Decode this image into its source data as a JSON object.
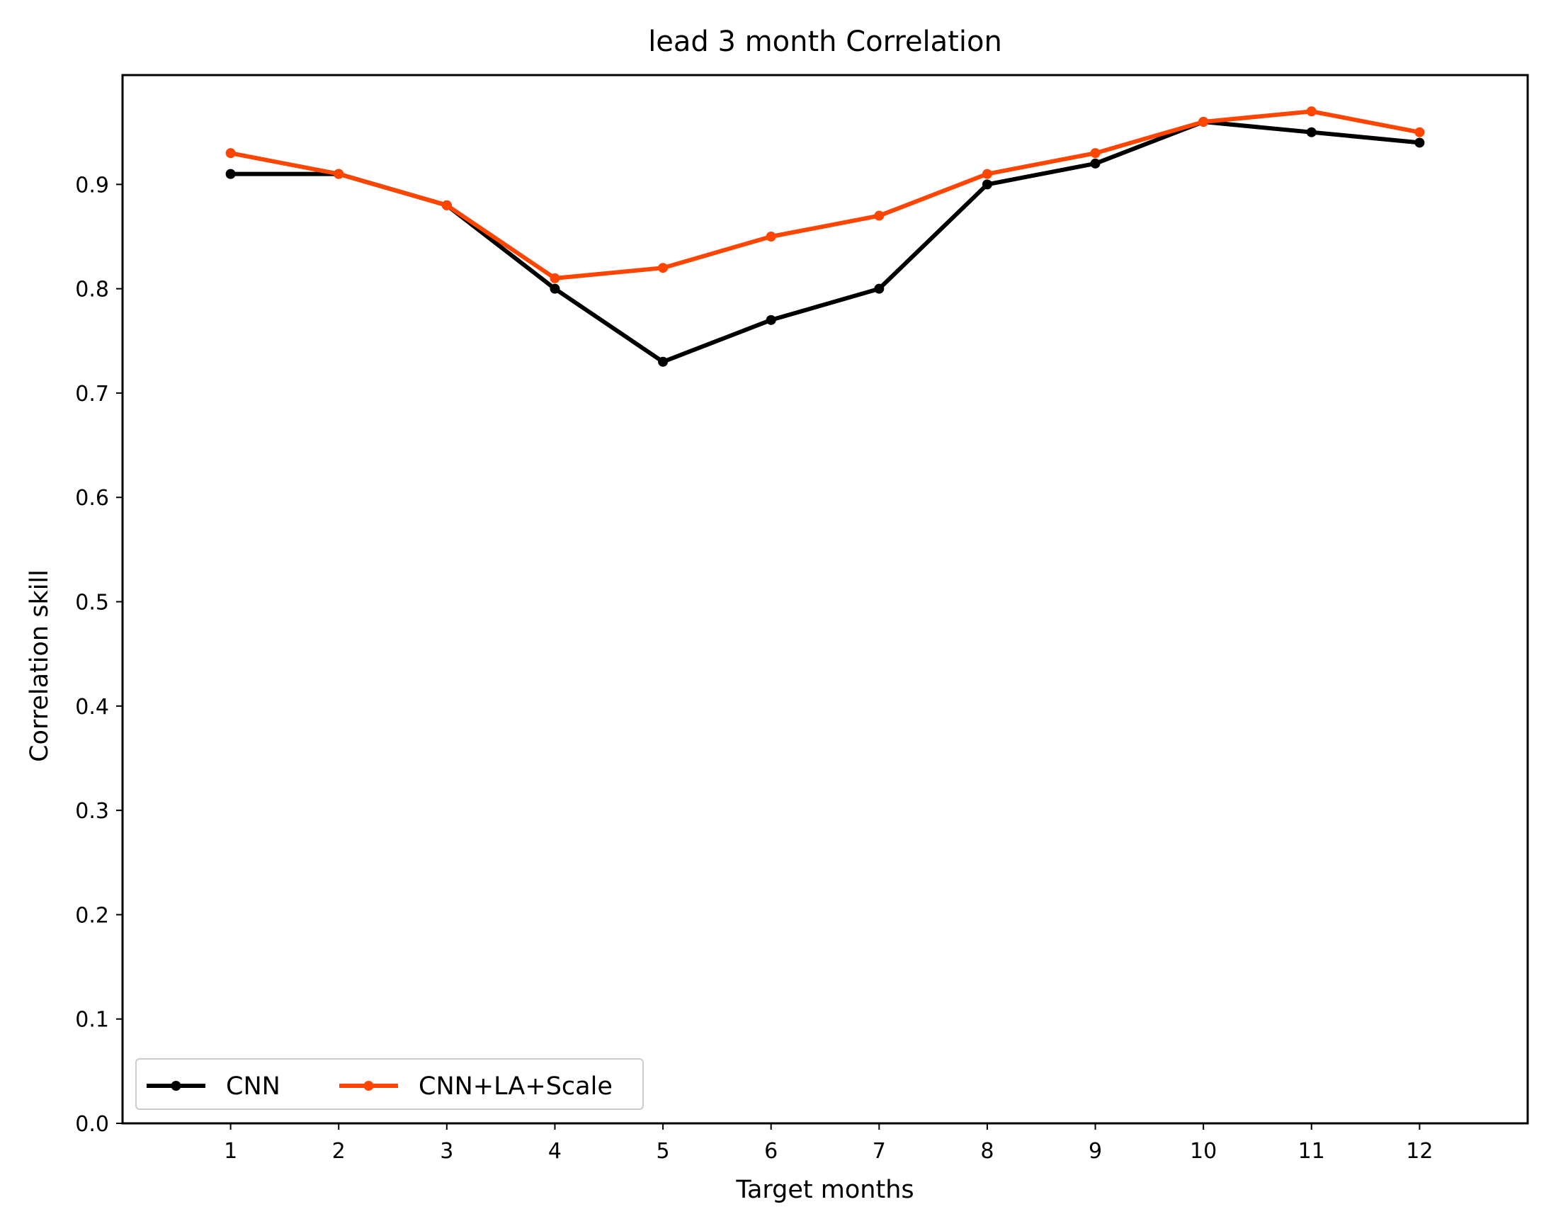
{
  "chart_data": {
    "type": "line",
    "title": "lead 3 month Correlation",
    "xlabel": "Target months",
    "ylabel": "Correlation skill",
    "x": [
      1,
      2,
      3,
      4,
      5,
      6,
      7,
      8,
      9,
      10,
      11,
      12
    ],
    "x_tick_labels": [
      "1",
      "2",
      "3",
      "4",
      "5",
      "6",
      "7",
      "8",
      "9",
      "10",
      "11",
      "12"
    ],
    "y_tick_labels": [
      "0.0",
      "0.1",
      "0.2",
      "0.3",
      "0.4",
      "0.5",
      "0.6",
      "0.7",
      "0.8",
      "0.9"
    ],
    "y_ticks": [
      0.0,
      0.1,
      0.2,
      0.3,
      0.4,
      0.5,
      0.6,
      0.7,
      0.8,
      0.9
    ],
    "xlim": [
      0,
      13
    ],
    "ylim": [
      0.0,
      1.0
    ],
    "grid": false,
    "legend_position": "lower-left",
    "series": [
      {
        "name": "CNN",
        "color": "#000000",
        "values": [
          0.91,
          0.91,
          0.88,
          0.8,
          0.73,
          0.77,
          0.8,
          0.9,
          0.92,
          0.96,
          0.95,
          0.94
        ]
      },
      {
        "name": "CNN+LA+Scale",
        "color": "#ff4500",
        "values": [
          0.93,
          0.91,
          0.88,
          0.81,
          0.82,
          0.85,
          0.87,
          0.91,
          0.93,
          0.96,
          0.97,
          0.95
        ]
      }
    ]
  }
}
